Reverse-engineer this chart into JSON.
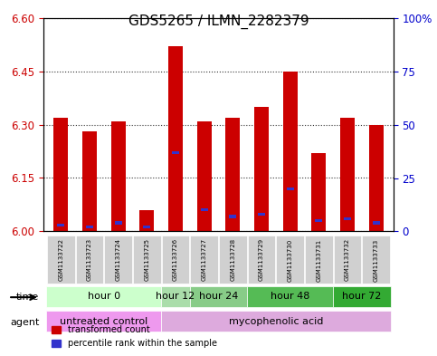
{
  "title": "GDS5265 / ILMN_2282379",
  "samples": [
    "GSM1133722",
    "GSM1133723",
    "GSM1133724",
    "GSM1133725",
    "GSM1133726",
    "GSM1133727",
    "GSM1133728",
    "GSM1133729",
    "GSM1133730",
    "GSM1133731",
    "GSM1133732",
    "GSM1133733"
  ],
  "red_values": [
    6.32,
    6.28,
    6.31,
    6.06,
    6.52,
    6.31,
    6.32,
    6.35,
    6.45,
    6.22,
    6.32,
    6.3
  ],
  "blue_values": [
    0.03,
    0.02,
    0.04,
    0.02,
    0.37,
    0.1,
    0.07,
    0.08,
    0.2,
    0.05,
    0.06,
    0.04
  ],
  "ylim_left": [
    6.0,
    6.6
  ],
  "yticks_left": [
    6.0,
    6.15,
    6.3,
    6.45,
    6.6
  ],
  "ylim_right": [
    0,
    100
  ],
  "yticks_right": [
    0,
    25,
    50,
    75,
    100
  ],
  "ytick_labels_right": [
    "0",
    "25",
    "50",
    "75",
    "100%"
  ],
  "bar_color_red": "#cc0000",
  "bar_color_blue": "#3333cc",
  "bar_bottom": 6.0,
  "grid_color": "#333333",
  "bg_plot": "#ffffff",
  "bg_xticklabels": "#cccccc",
  "time_groups": [
    {
      "label": "hour 0",
      "start": 0,
      "end": 3,
      "color": "#ccffcc"
    },
    {
      "label": "hour 12",
      "start": 4,
      "end": 4,
      "color": "#aaddaa"
    },
    {
      "label": "hour 24",
      "start": 5,
      "end": 6,
      "color": "#88cc88"
    },
    {
      "label": "hour 48",
      "start": 7,
      "end": 9,
      "color": "#55bb55"
    },
    {
      "label": "hour 72",
      "start": 10,
      "end": 11,
      "color": "#33aa33"
    }
  ],
  "agent_groups": [
    {
      "label": "untreated control",
      "start": 0,
      "end": 3,
      "color": "#ee99ee"
    },
    {
      "label": "mycophenolic acid",
      "start": 4,
      "end": 11,
      "color": "#ddaadd"
    }
  ],
  "time_colors": [
    "#ccffcc",
    "#ccffcc",
    "#ccffcc",
    "#ccffcc",
    "#aaddaa",
    "#88cc88",
    "#88cc88",
    "#55bb55",
    "#55bb55",
    "#55bb55",
    "#33aa33",
    "#33aa33"
  ],
  "legend_red": "transformed count",
  "legend_blue": "percentile rank within the sample",
  "left_tick_color": "#cc0000",
  "right_tick_color": "#0000cc",
  "xticklabel_color": "#333333",
  "title_fontsize": 11,
  "tick_fontsize": 8.5,
  "annot_fontsize": 8,
  "row_fontsize": 8
}
